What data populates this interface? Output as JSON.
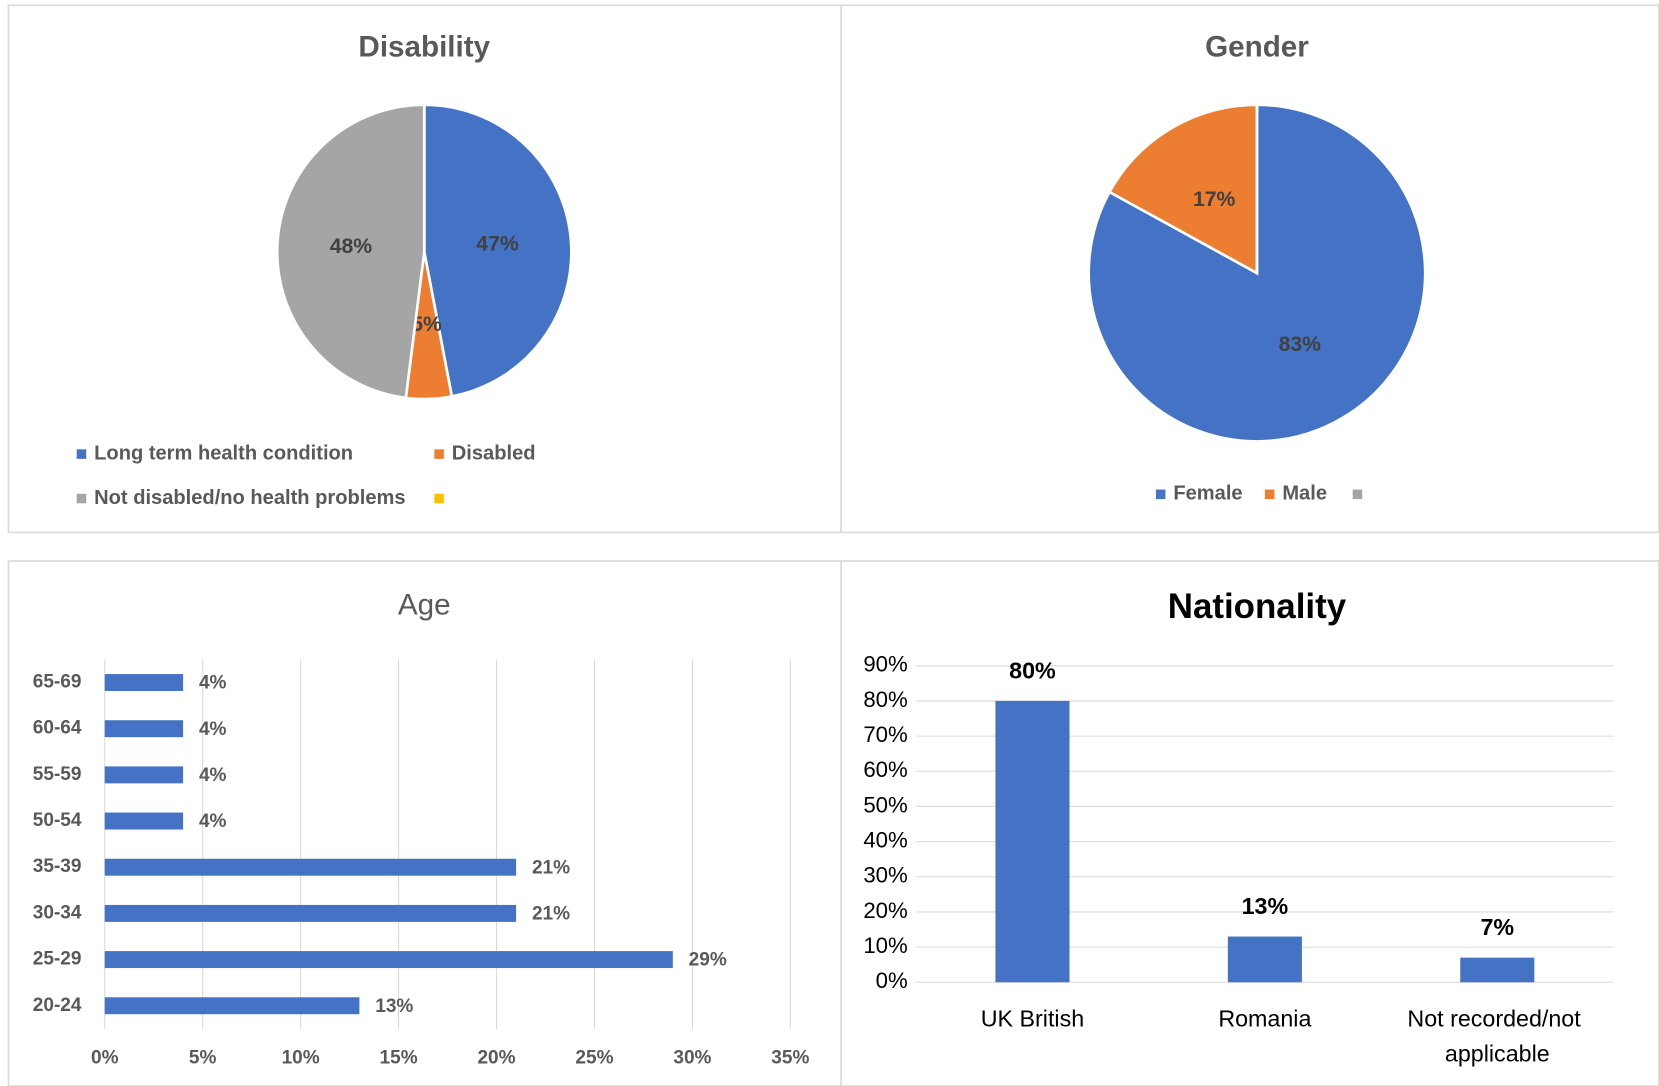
{
  "chart_data": [
    {
      "type": "pie",
      "title": "Disability",
      "categories": [
        "Long term health condition",
        "Disabled",
        "Not disabled/no health problems",
        null
      ],
      "values": [
        47,
        5,
        48,
        0
      ],
      "value_labels": [
        "47%",
        "5%",
        "48%",
        null
      ],
      "colors": [
        "#4472c4",
        "#ed7d31",
        "#a5a5a5",
        "#ffc000"
      ]
    },
    {
      "type": "pie",
      "title": "Gender",
      "categories": [
        "Female",
        "Male",
        null
      ],
      "values": [
        83,
        17,
        0
      ],
      "value_labels": [
        "83%",
        "17%",
        null
      ],
      "colors": [
        "#4472c4",
        "#ed7d31",
        "#a5a5a5"
      ]
    },
    {
      "type": "bar",
      "orientation": "horizontal",
      "title": "Age",
      "categories": [
        "20-24",
        "25-29",
        "30-34",
        "35-39",
        "50-54",
        "55-59",
        "60-64",
        "65-69"
      ],
      "values": [
        13,
        29,
        21,
        21,
        4,
        4,
        4,
        4
      ],
      "value_labels": [
        "13%",
        "29%",
        "21%",
        "21%",
        "4%",
        "4%",
        "4%",
        "4%"
      ],
      "color": "#4472c4",
      "xlim": [
        0,
        35
      ],
      "xticks": [
        {
          "value": 0,
          "label": "0%"
        },
        {
          "value": 5,
          "label": "5%"
        },
        {
          "value": 10,
          "label": "10%"
        },
        {
          "value": 15,
          "label": "15%"
        },
        {
          "value": 20,
          "label": "20%"
        },
        {
          "value": 25,
          "label": "25%"
        },
        {
          "value": 30,
          "label": "30%"
        },
        {
          "value": 35,
          "label": "35%"
        }
      ],
      "grid": true
    },
    {
      "type": "bar",
      "orientation": "vertical",
      "title": "Nationality",
      "categories": [
        "UK British",
        "Romania",
        "Not recorded/not applicable"
      ],
      "values": [
        80,
        13,
        7
      ],
      "value_labels": [
        "80%",
        "13%",
        "7%"
      ],
      "color": "#4472c4",
      "ylim": [
        0,
        90
      ],
      "yticks": [
        {
          "value": 0,
          "label": "0%"
        },
        {
          "value": 10,
          "label": "10%"
        },
        {
          "value": 20,
          "label": "20%"
        },
        {
          "value": 30,
          "label": "30%"
        },
        {
          "value": 40,
          "label": "40%"
        },
        {
          "value": 50,
          "label": "50%"
        },
        {
          "value": 60,
          "label": "60%"
        },
        {
          "value": 70,
          "label": "70%"
        },
        {
          "value": 80,
          "label": "80%"
        },
        {
          "value": 90,
          "label": "90%"
        }
      ],
      "grid": true
    }
  ]
}
